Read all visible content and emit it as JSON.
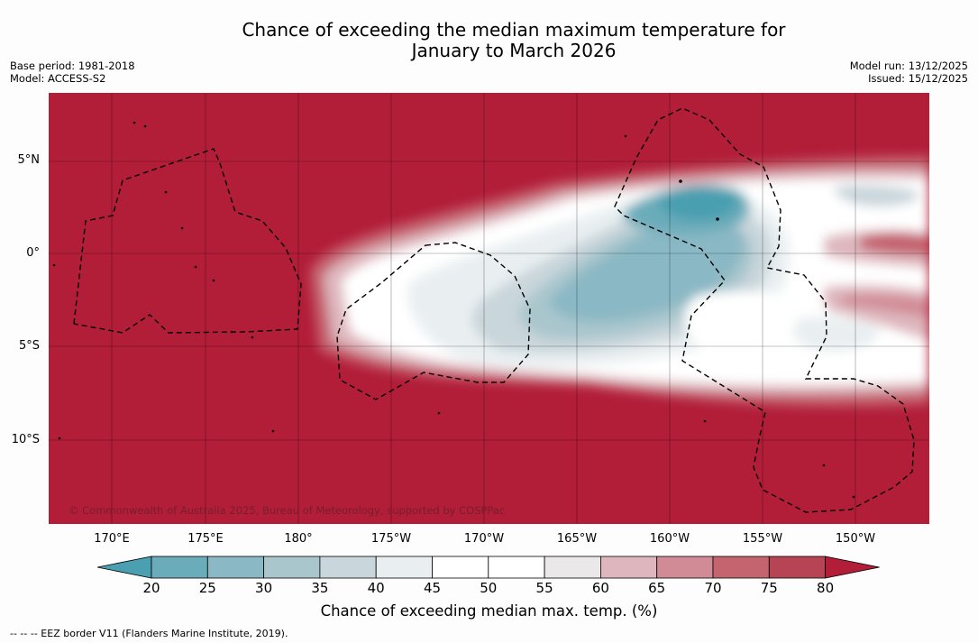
{
  "title_line1": "Chance of exceeding the median maximum temperature for",
  "title_line2": "January to March 2026",
  "meta_left": [
    "Base period: 1981-2018",
    "Model: ACCESS-S2"
  ],
  "meta_right": [
    "Model run: 13/12/2025",
    "Issued: 15/12/2025"
  ],
  "lat_labels": [
    "5°N",
    "0°",
    "5°S",
    "10°S"
  ],
  "lon_labels": [
    "170°E",
    "175°E",
    "180°",
    "175°W",
    "170°W",
    "165°W",
    "160°W",
    "155°W",
    "150°W"
  ],
  "colorbar": {
    "ticks": [
      "20",
      "25",
      "30",
      "35",
      "40",
      "45",
      "50",
      "55",
      "60",
      "65",
      "70",
      "75",
      "80"
    ],
    "colors": [
      "#4a9fb0",
      "#6aacba",
      "#8ab8c4",
      "#a9c6cd",
      "#c9d6db",
      "#e9eff1",
      "#ffffff",
      "#ffffff",
      "#ebe8e9",
      "#deb7be",
      "#d18b96",
      "#c4646f",
      "#b74455",
      "#b21d38"
    ],
    "label": "Chance of exceeding median max. temp. (%)"
  },
  "copyright": "© Commonwealth of Australia 2025, Bureau of Meteorology, supported by COSPPac",
  "footer": "--  --  -- EEZ border V11 (Flanders Marine Institute, 2019)."
}
